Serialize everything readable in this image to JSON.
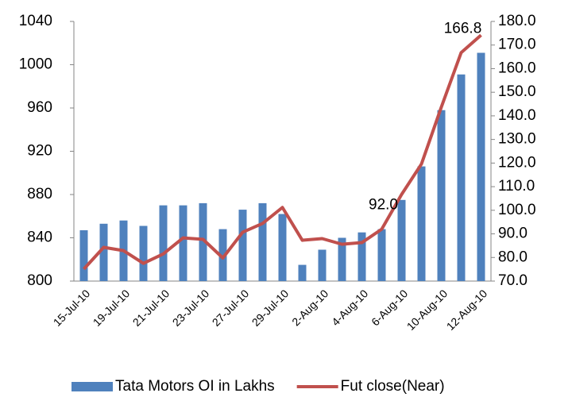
{
  "chart_data": {
    "type": "bar-line",
    "categories": [
      "15-Jul-10",
      null,
      "19-Jul-10",
      null,
      "21-Jul-10",
      null,
      "23-Jul-10",
      null,
      "27-Jul-10",
      null,
      "29-Jul-10",
      null,
      "2-Aug-10",
      null,
      "4-Aug-10",
      null,
      "6-Aug-10",
      null,
      "10-Aug-10",
      null,
      "12-Aug-10"
    ],
    "series": [
      {
        "name": "Tata Motors OI in Lakhs",
        "color": "#4f81bd",
        "type": "bar",
        "axis": "y",
        "values": [
          847,
          853,
          856,
          851,
          870,
          870,
          872,
          848,
          866,
          872,
          862,
          815,
          829,
          840,
          845,
          848,
          875,
          906,
          958,
          991,
          1011
        ]
      },
      {
        "name": "Fut close(Near)",
        "color": "#c0504d",
        "type": "line",
        "axis": "y2",
        "values": [
          75.1,
          84.3,
          82.9,
          77.5,
          81.5,
          88.3,
          87.7,
          79.8,
          90.7,
          94.4,
          101.2,
          87.3,
          88.0,
          85.6,
          86.3,
          92.0,
          106.7,
          119.6,
          143.7,
          166.8,
          174.2
        ],
        "value_labels": [
          null,
          null,
          null,
          null,
          null,
          null,
          null,
          null,
          null,
          null,
          null,
          null,
          null,
          null,
          null,
          "92.0",
          null,
          null,
          null,
          "166.8",
          null
        ]
      }
    ],
    "ylim": [
      800,
      1040
    ],
    "yticks": [
      800,
      840,
      880,
      920,
      960,
      1000,
      1040
    ],
    "y2lim": [
      70,
      180
    ],
    "y2ticks": [
      {
        "value": 70,
        "label": "70.0"
      },
      {
        "value": 80,
        "label": "80.0"
      },
      {
        "value": 90,
        "label": "90.0"
      },
      {
        "value": 100,
        "label": "100.0"
      },
      {
        "value": 110,
        "label": "110.0"
      },
      {
        "value": 120,
        "label": "120.0"
      },
      {
        "value": 130,
        "label": "130.0"
      },
      {
        "value": 140,
        "label": "140.0"
      },
      {
        "value": 150,
        "label": "150.0"
      },
      {
        "value": 160,
        "label": "160.0"
      },
      {
        "value": 170,
        "label": "170.0"
      },
      {
        "value": 180,
        "label": "180.0"
      }
    ],
    "grid": false,
    "legend": "bottom"
  }
}
